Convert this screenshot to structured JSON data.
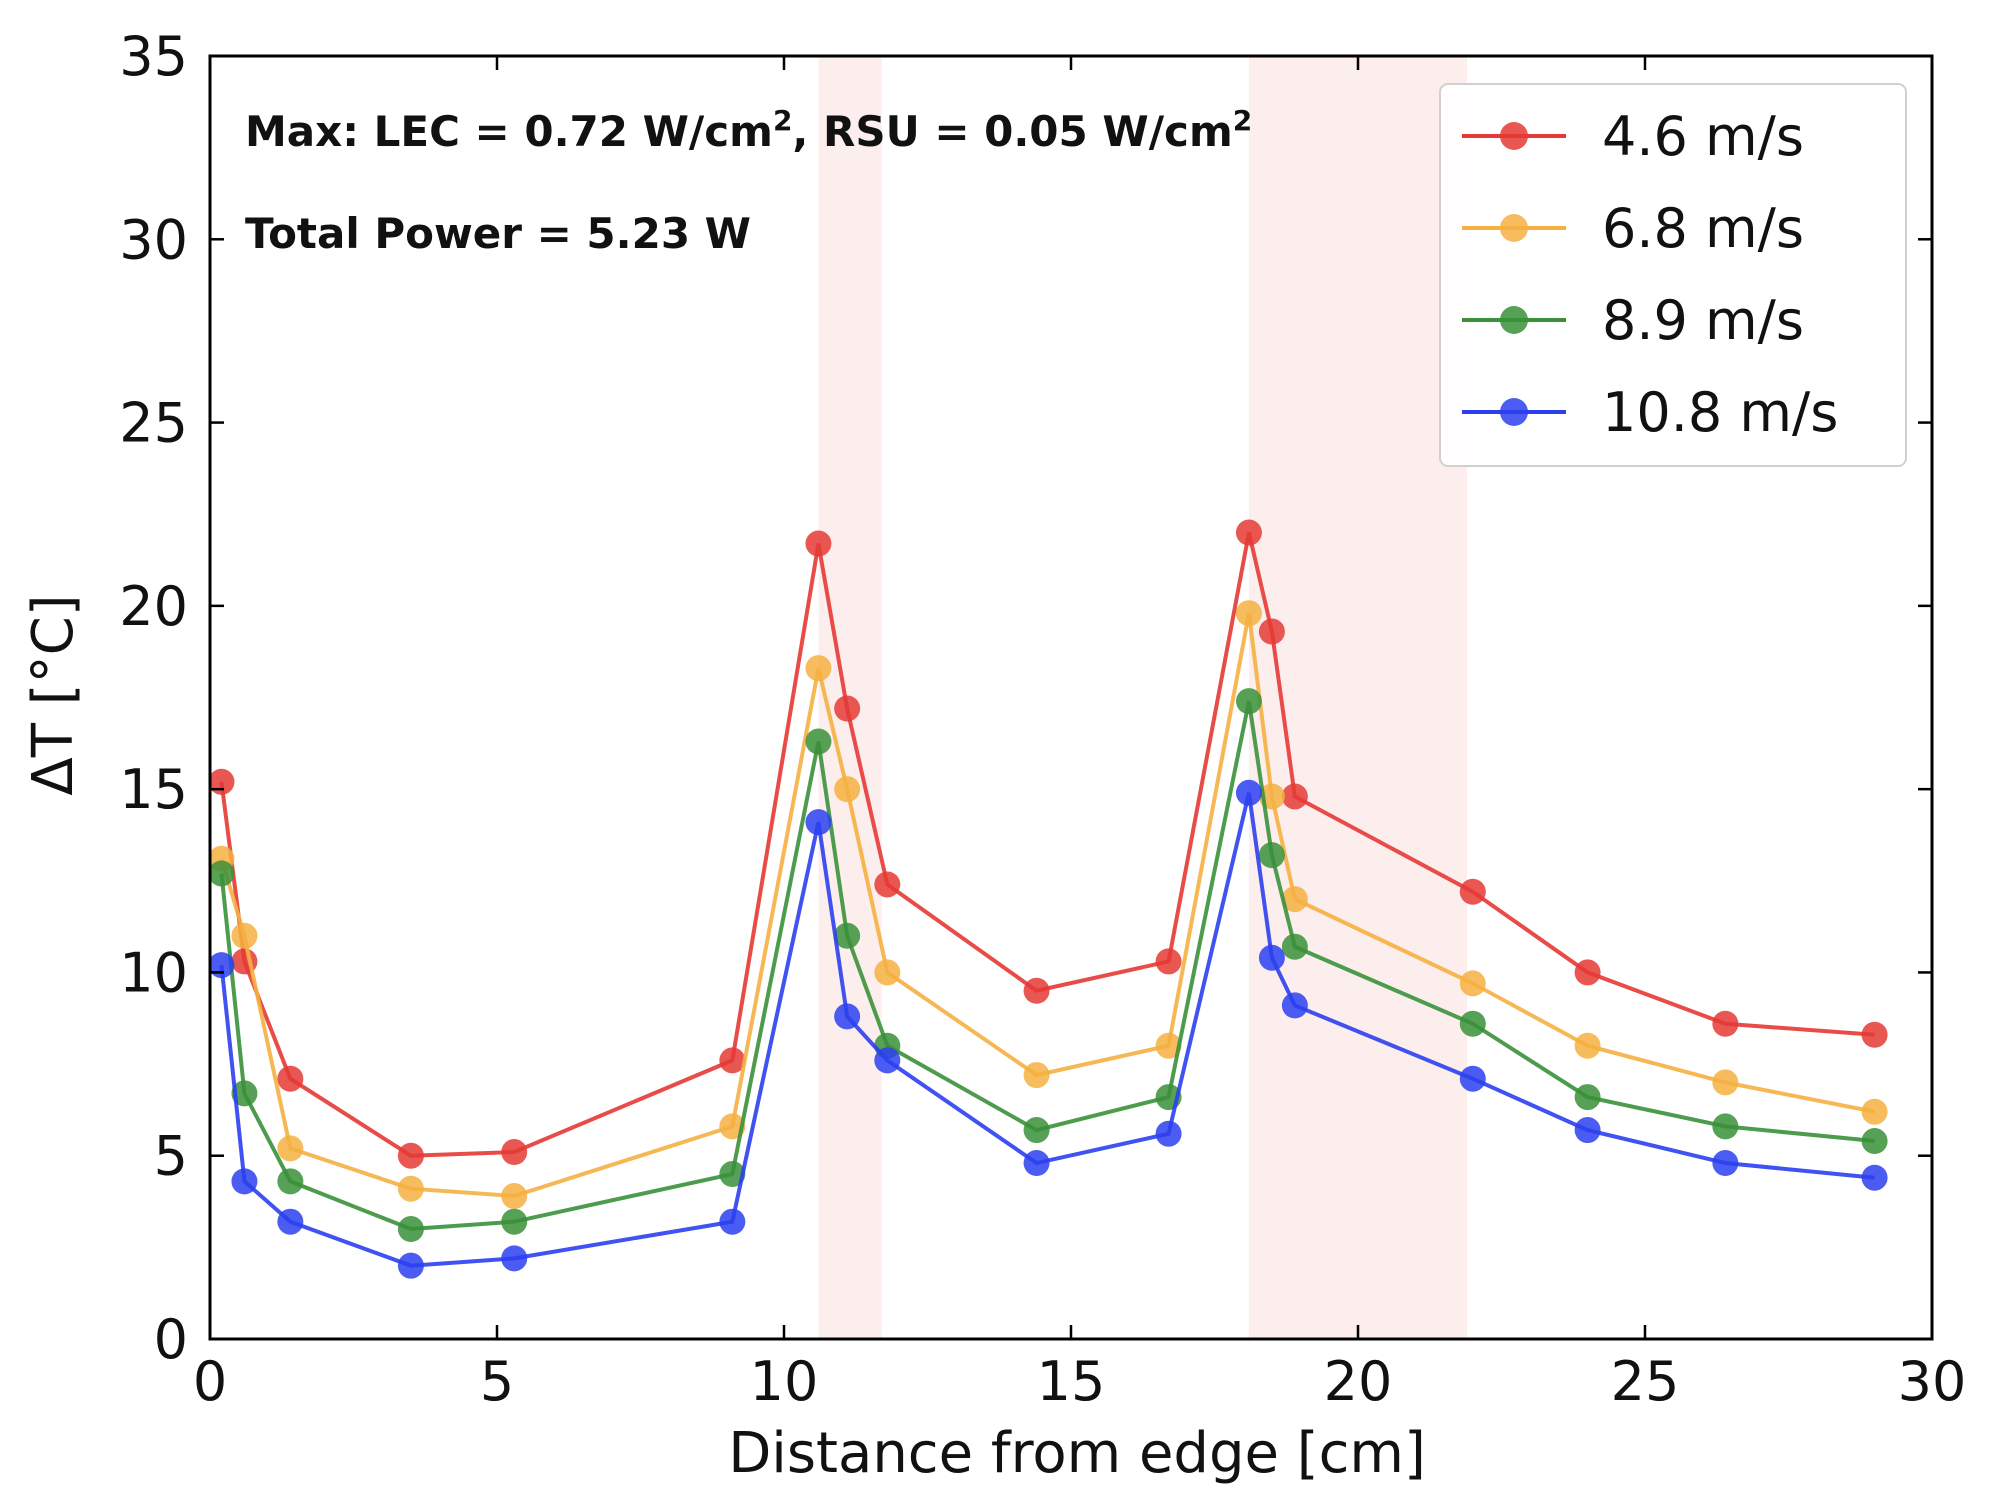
{
  "chart_data": {
    "type": "line",
    "xlabel": "Distance from edge [cm]",
    "ylabel": "ΔT [°C]",
    "xlim": [
      0,
      30
    ],
    "ylim": [
      0,
      35
    ],
    "xticks": [
      0,
      5,
      10,
      15,
      20,
      25,
      30
    ],
    "yticks": [
      0,
      5,
      10,
      15,
      20,
      25,
      30,
      35
    ],
    "grid": false,
    "legend_position": "top-right",
    "shaded_regions": [
      [
        10.6,
        11.7
      ],
      [
        18.1,
        21.9
      ]
    ],
    "shaded_color": "#fdeeee",
    "annotations": [
      {
        "lines": [
          "Max: LEC = 0.72 W/cm",
          "2",
          ", RSU = 0.05 W/cm",
          "2"
        ]
      },
      {
        "lines": [
          "Total Power = 5.23 W"
        ]
      }
    ],
    "series": [
      {
        "name": "4.6 m/s",
        "color": "#e53935",
        "x": [
          0.2,
          0.6,
          1.4,
          3.5,
          5.3,
          9.1,
          10.6,
          11.1,
          11.8,
          14.4,
          16.7,
          18.1,
          18.5,
          18.9,
          22.0,
          24.0,
          26.4,
          29.0
        ],
        "y": [
          15.2,
          10.3,
          7.1,
          5.0,
          5.1,
          7.6,
          21.7,
          17.2,
          12.4,
          9.5,
          10.3,
          22.0,
          19.3,
          14.8,
          12.2,
          10.0,
          8.6,
          8.3
        ]
      },
      {
        "name": "6.8 m/s",
        "color": "#f5b041",
        "x": [
          0.2,
          0.6,
          1.4,
          3.5,
          5.3,
          9.1,
          10.6,
          11.1,
          11.8,
          14.4,
          16.7,
          18.1,
          18.5,
          18.9,
          22.0,
          24.0,
          26.4,
          29.0
        ],
        "y": [
          13.1,
          11.0,
          5.2,
          4.1,
          3.9,
          5.8,
          18.3,
          15.0,
          10.0,
          7.2,
          8.0,
          19.8,
          14.8,
          12.0,
          9.7,
          8.0,
          7.0,
          6.2
        ]
      },
      {
        "name": "8.9 m/s",
        "color": "#3a913a",
        "x": [
          0.2,
          0.6,
          1.4,
          3.5,
          5.3,
          9.1,
          10.6,
          11.1,
          11.8,
          14.4,
          16.7,
          18.1,
          18.5,
          18.9,
          22.0,
          24.0,
          26.4,
          29.0
        ],
        "y": [
          12.7,
          6.7,
          4.3,
          3.0,
          3.2,
          4.5,
          16.3,
          11.0,
          8.0,
          5.7,
          6.6,
          17.4,
          13.2,
          10.7,
          8.6,
          6.6,
          5.8,
          5.4
        ]
      },
      {
        "name": "10.8 m/s",
        "color": "#2b3ff0",
        "x": [
          0.2,
          0.6,
          1.4,
          3.5,
          5.3,
          9.1,
          10.6,
          11.1,
          11.8,
          14.4,
          16.7,
          18.1,
          18.5,
          18.9,
          22.0,
          24.0,
          26.4,
          29.0
        ],
        "y": [
          10.2,
          4.3,
          3.2,
          2.0,
          2.2,
          3.2,
          14.1,
          8.8,
          7.6,
          4.8,
          5.6,
          14.9,
          10.4,
          9.1,
          7.1,
          5.7,
          4.8,
          4.4
        ]
      }
    ]
  }
}
